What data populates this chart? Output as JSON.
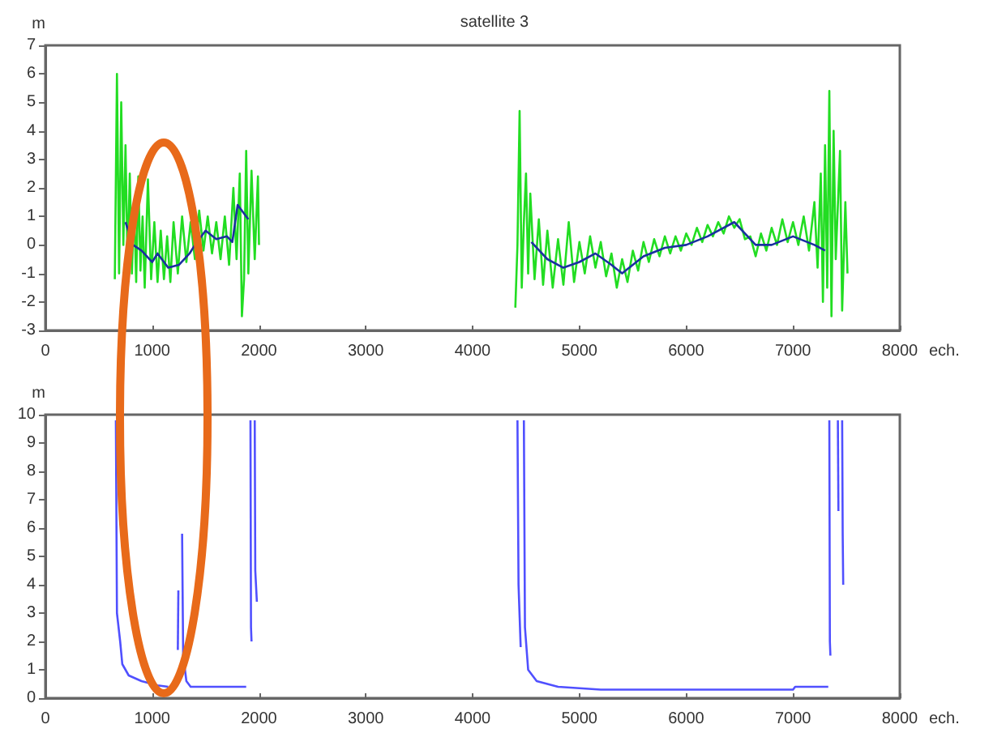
{
  "chart_data": [
    {
      "type": "line",
      "title": "satellite 3",
      "ylabel": "m",
      "xlabel": "ech.",
      "xlim": [
        0,
        8000
      ],
      "xticks": [
        0,
        1000,
        2000,
        3000,
        4000,
        5000,
        6000,
        7000,
        8000
      ],
      "ylim": [
        -3,
        7
      ],
      "yticks": [
        -3,
        -2,
        -1,
        0,
        1,
        2,
        3,
        4,
        5,
        6,
        7
      ],
      "grid": false,
      "marker": "none",
      "line_style": "solid",
      "series": [
        {
          "color": "#22dd22",
          "x": [
            650,
            670,
            690,
            710,
            730,
            750,
            770,
            790,
            810,
            830,
            850,
            870,
            890,
            910,
            930,
            960,
            990,
            1020,
            1050,
            1080,
            1110,
            1140,
            1170,
            1200,
            1240,
            1280,
            1320,
            1360,
            1400,
            1440,
            1480,
            1520,
            1560,
            1600,
            1640,
            1680,
            1720,
            1760,
            1790,
            1820,
            1840,
            1860,
            1880,
            1900,
            1930,
            1960,
            1990,
            2000,
            3000,
            4400,
            4420,
            4440,
            4460,
            4480,
            4500,
            4520,
            4540,
            4580,
            4620,
            4660,
            4700,
            4750,
            4800,
            4850,
            4900,
            4950,
            5000,
            5050,
            5100,
            5150,
            5200,
            5250,
            5300,
            5350,
            5400,
            5450,
            5500,
            5550,
            5600,
            5650,
            5700,
            5750,
            5800,
            5850,
            5900,
            5950,
            6000,
            6050,
            6100,
            6150,
            6200,
            6250,
            6300,
            6350,
            6400,
            6450,
            6500,
            6550,
            6600,
            6650,
            6700,
            6750,
            6800,
            6850,
            6900,
            6950,
            7000,
            7050,
            7100,
            7150,
            7200,
            7230,
            7260,
            7280,
            7300,
            7320,
            7340,
            7360,
            7380,
            7400,
            7440,
            7460,
            7490,
            7510
          ],
          "values": [
            -1.2,
            6.0,
            -1.0,
            5.0,
            0,
            3.5,
            -0.8,
            2.5,
            -1.0,
            1.5,
            -1.3,
            2.4,
            -0.9,
            1.0,
            -1.5,
            2.3,
            -1.2,
            0.8,
            -1.3,
            0.5,
            -1.2,
            0.3,
            -1.3,
            0.8,
            -1.0,
            1.0,
            -0.6,
            0.8,
            -0.5,
            1.2,
            -0.2,
            1.0,
            -0.3,
            0.8,
            -0.5,
            1.0,
            -0.7,
            2.0,
            -0.5,
            2.5,
            -2.5,
            -1.2,
            3.3,
            -1.0,
            2.6,
            -0.5,
            2.4,
            0,
            null,
            -2.2,
            0,
            4.7,
            -1.5,
            0.8,
            2.5,
            -1.0,
            1.8,
            -1.2,
            0.9,
            -1.4,
            0.5,
            -1.5,
            0.2,
            -1.4,
            0.8,
            -1.3,
            0.1,
            -1.0,
            0.3,
            -0.8,
            0.1,
            -1.1,
            -0.3,
            -1.5,
            -0.5,
            -1.3,
            -0.2,
            -0.9,
            0.1,
            -0.6,
            0.2,
            -0.4,
            0.3,
            -0.3,
            0.3,
            -0.2,
            0.4,
            0,
            0.6,
            0.1,
            0.7,
            0.3,
            0.8,
            0.4,
            1.0,
            0.6,
            0.9,
            0.2,
            0.3,
            -0.4,
            0.4,
            -0.2,
            0.6,
            0,
            0.9,
            0.1,
            0.8,
            0,
            1.0,
            -0.2,
            1.5,
            -0.8,
            2.5,
            -2.0,
            3.5,
            -1.5,
            5.4,
            -2.5,
            4.0,
            -0.5,
            3.3,
            -2.3,
            1.5,
            -1.0
          ]
        },
        {
          "color": "#1a2fa0",
          "x": [
            750,
            820,
            900,
            1000,
            1050,
            1150,
            1250,
            1350,
            1400,
            1500,
            1600,
            1700,
            1750,
            1800,
            1900,
            3000,
            4550,
            4700,
            4850,
            5000,
            5150,
            5300,
            5400,
            5600,
            5800,
            6000,
            6200,
            6450,
            6650,
            6800,
            7000,
            7200,
            7300
          ],
          "values": [
            0.8,
            0,
            -0.2,
            -0.6,
            -0.3,
            -0.8,
            -0.7,
            -0.3,
            0,
            0.5,
            0.2,
            0.3,
            0.1,
            1.4,
            0.9,
            null,
            0.1,
            -0.5,
            -0.8,
            -0.6,
            -0.3,
            -0.7,
            -1.0,
            -0.4,
            -0.1,
            0.0,
            0.3,
            0.8,
            0.0,
            0.0,
            0.3,
            0.0,
            -0.2
          ]
        }
      ]
    },
    {
      "type": "line",
      "ylabel": "m",
      "xlabel": "ech.",
      "xlim": [
        0,
        8000
      ],
      "xticks": [
        0,
        1000,
        2000,
        3000,
        4000,
        5000,
        6000,
        7000,
        8000
      ],
      "ylim": [
        0,
        10
      ],
      "yticks": [
        0,
        1,
        2,
        3,
        4,
        5,
        6,
        7,
        8,
        9,
        10
      ],
      "grid": false,
      "marker": "none",
      "line_style": "solid",
      "series": [
        {
          "color": "#5050ff",
          "x": [
            660,
            670,
            700,
            720,
            780,
            900,
            1050,
            1150
          ],
          "values": [
            9.8,
            3.0,
            2.0,
            1.2,
            0.8,
            0.6,
            0.45,
            0.4
          ]
        },
        {
          "color": "#5050ff",
          "x": [
            1240,
            1245
          ],
          "values": [
            1.7,
            3.8
          ]
        },
        {
          "color": "#5050ff",
          "x": [
            1280,
            1290,
            1320,
            1360,
            1880
          ],
          "values": [
            5.8,
            1.5,
            0.6,
            0.4,
            0.4
          ]
        },
        {
          "color": "#5050ff",
          "x": [
            1920,
            1925,
            1930
          ],
          "values": [
            9.8,
            2.5,
            2.0
          ]
        },
        {
          "color": "#5050ff",
          "x": [
            1960,
            1965,
            1980
          ],
          "values": [
            9.8,
            4.5,
            3.4
          ]
        },
        {
          "color": "#5050ff",
          "x": [
            4420,
            4430,
            4450
          ],
          "values": [
            9.8,
            4.0,
            1.8
          ]
        },
        {
          "color": "#5050ff",
          "x": [
            4480,
            4490,
            4520,
            4600,
            4800,
            5200,
            7000,
            7020,
            7330
          ],
          "values": [
            9.8,
            2.5,
            1.0,
            0.6,
            0.4,
            0.3,
            0.3,
            0.4,
            0.4
          ]
        },
        {
          "color": "#5050ff",
          "x": [
            7340,
            7345,
            7350
          ],
          "values": [
            9.8,
            2.0,
            1.5
          ]
        },
        {
          "color": "#5050ff",
          "x": [
            7420,
            7425
          ],
          "values": [
            9.8,
            6.6
          ]
        },
        {
          "color": "#5050ff",
          "x": [
            7460,
            7465,
            7470
          ],
          "values": [
            9.8,
            5.8,
            4.0
          ]
        }
      ]
    }
  ]
}
